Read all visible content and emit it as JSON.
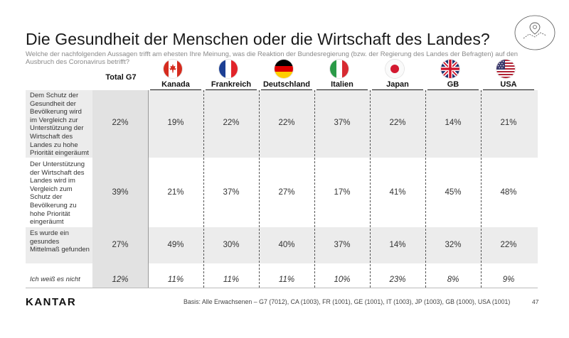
{
  "title": "Die Gesundheit der Menschen oder die Wirtschaft des Landes?",
  "subtitle": "Welche der nachfolgenden Aussagen trifft am ehesten Ihre Meinung, was die Reaktion der Bundesregierung (bzw. der Regierung des Landes der Befragten) auf den Ausbruch des Coronavirus betrifft?",
  "logo": "KANTAR",
  "footnote": "Basis: Alle Erwachsenen – G7 (7012), CA (1003), FR (1001), GE (1001), IT (1003), JP (1003), GB (1000), USA (1001)",
  "page_number": "47",
  "colors": {
    "band_gray": "#ececec",
    "total_gray": "#e2e2e2",
    "text": "#333333"
  },
  "chart_data": {
    "type": "table",
    "title": "Die Gesundheit der Menschen oder die Wirtschaft des Landes?",
    "columns": [
      {
        "id": "total",
        "label": "Total G7",
        "flag": ""
      },
      {
        "id": "ca",
        "label": "Kanada",
        "flag": "canada-flag-icon"
      },
      {
        "id": "fr",
        "label": "Frankreich",
        "flag": "france-flag-icon"
      },
      {
        "id": "de",
        "label": "Deutschland",
        "flag": "germany-flag-icon"
      },
      {
        "id": "it",
        "label": "Italien",
        "flag": "italy-flag-icon"
      },
      {
        "id": "jp",
        "label": "Japan",
        "flag": "japan-flag-icon"
      },
      {
        "id": "gb",
        "label": "GB",
        "flag": "uk-flag-icon"
      },
      {
        "id": "us",
        "label": "USA",
        "flag": "usa-flag-icon"
      }
    ],
    "rows": [
      {
        "label": "Dem Schutz der Gesundheit der Bevölkerung wird im Vergleich zur Unterstützung der Wirtschaft des Landes zu hohe Priorität eingeräumt",
        "values": [
          "22%",
          "19%",
          "22%",
          "22%",
          "37%",
          "22%",
          "14%",
          "21%"
        ]
      },
      {
        "label": "Der Unterstützung der Wirtschaft des Landes wird im Vergleich zum Schutz der Bevölkerung zu hohe Priorität eingeräumt",
        "values": [
          "39%",
          "21%",
          "37%",
          "27%",
          "17%",
          "41%",
          "45%",
          "48%"
        ]
      },
      {
        "label": "Es wurde ein gesundes Mittelmaß gefunden",
        "values": [
          "27%",
          "49%",
          "30%",
          "40%",
          "37%",
          "14%",
          "32%",
          "22%"
        ]
      },
      {
        "label": "Ich weiß es nicht",
        "values": [
          "12%",
          "11%",
          "11%",
          "11%",
          "10%",
          "23%",
          "8%",
          "9%"
        ]
      }
    ]
  }
}
